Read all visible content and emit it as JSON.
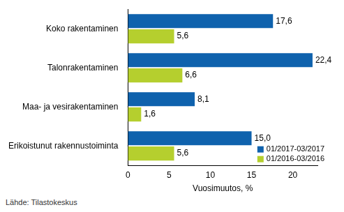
{
  "chart_data": {
    "type": "bar",
    "orientation": "horizontal",
    "categories": [
      "Koko rakentaminen",
      "Talonrakentaminen",
      "Maa- ja vesirakentaminen",
      "Erikoistunut rakennustoiminta"
    ],
    "series": [
      {
        "name": "01/2017-03/2017",
        "color": "#0f62ad",
        "values": [
          17.6,
          22.4,
          8.1,
          15.0
        ],
        "value_labels": [
          "17,6",
          "22,4",
          "8,1",
          "15,0"
        ]
      },
      {
        "name": "01/2016-03/2016",
        "color": "#b5cf2e",
        "values": [
          5.6,
          6.6,
          1.6,
          5.6
        ],
        "value_labels": [
          "5,6",
          "6,6",
          "1,6",
          "5,6"
        ]
      }
    ],
    "x_label": "Vuosimuutos, %",
    "xlim": [
      0,
      23
    ],
    "xticks": [
      0,
      5,
      10,
      15,
      20
    ],
    "grid": false,
    "legend": "lower right",
    "data_labels": true,
    "source": "Lähde: Tilastokeskus"
  }
}
